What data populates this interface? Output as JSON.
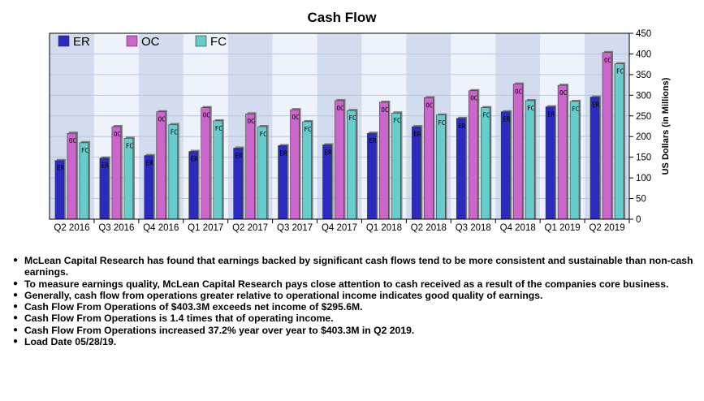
{
  "chart_data": {
    "type": "bar",
    "title": "Cash Flow",
    "ylabel": "US Dollars (in Millions)",
    "xlabel": "",
    "ylim": [
      0,
      450
    ],
    "yticks": [
      0,
      50,
      100,
      150,
      200,
      250,
      300,
      350,
      400,
      450
    ],
    "categories": [
      "Q2 2016",
      "Q3 2016",
      "Q4 2016",
      "Q1 2017",
      "Q2 2017",
      "Q3 2017",
      "Q4 2017",
      "Q1 2018",
      "Q2 2018",
      "Q3 2018",
      "Q4 2018",
      "Q1 2019",
      "Q2 2019"
    ],
    "series": [
      {
        "name": "ER",
        "marker": "ER",
        "color": "#2b2bbf",
        "values": [
          142,
          148,
          154,
          164,
          172,
          178,
          180,
          208,
          224,
          244,
          260,
          272,
          295.6
        ]
      },
      {
        "name": "OC",
        "marker": "OC",
        "color": "#cc66cc",
        "values": [
          208,
          224,
          260,
          270,
          255,
          265,
          287,
          283,
          294,
          311,
          327,
          324,
          403.3
        ]
      },
      {
        "name": "FC",
        "marker": "FC",
        "color": "#66cccc",
        "values": [
          185,
          196,
          229,
          238,
          224,
          236,
          263,
          257,
          252,
          270,
          287,
          285,
          376
        ]
      }
    ],
    "legend_position": "top-left"
  },
  "notes": [
    "McLean Capital Research has found that earnings backed by significant cash flows tend to be more consistent and sustainable than non-cash earnings.",
    "To measure earnings quality, McLean Capital Research pays close attention to cash received as a result of the companies core business.",
    "Generally, cash flow from operations greater relative to operational income indicates good quality of earnings.",
    "Cash Flow From Operations of $403.3M exceeds net income of $295.6M.",
    "Cash Flow From Operations is 1.4 times that of operating income.",
    "Cash Flow From Operations increased 37.2% year over year to $403.3M in Q2 2019.",
    "Load Date 05/28/19."
  ]
}
